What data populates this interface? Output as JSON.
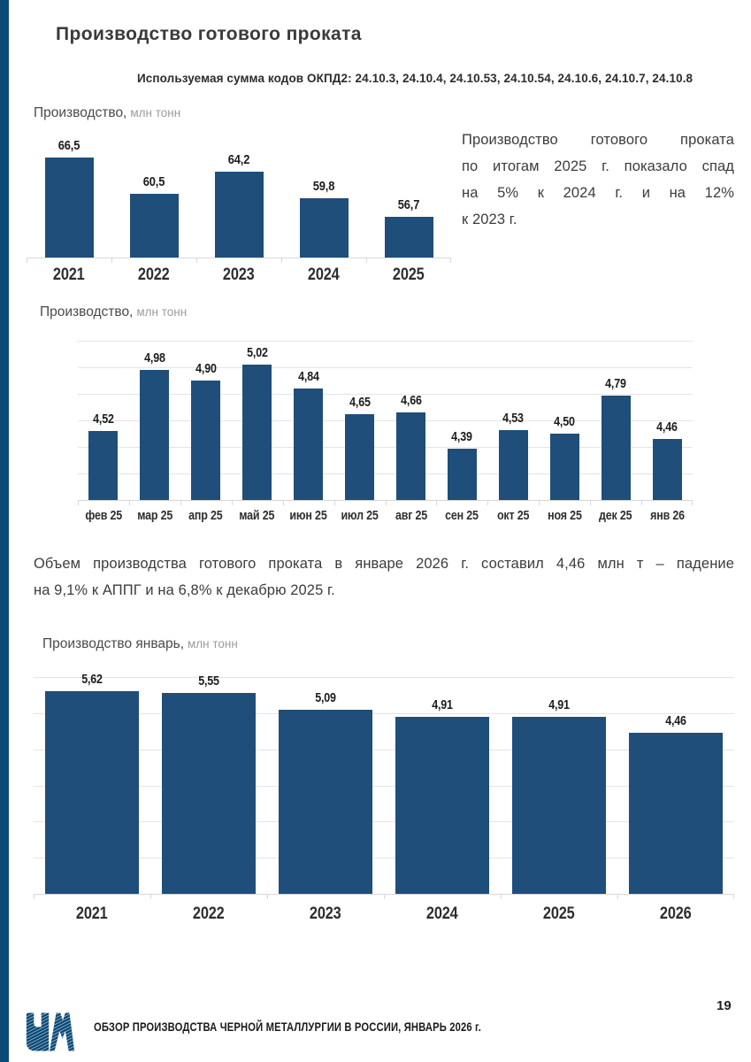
{
  "page": {
    "title": "Производство готового проката",
    "subtitle": "Используемая сумма кодов ОКПД2: 24.10.3, 24.10.4, 24.10.53, 24.10.54, 24.10.6, 24.10.7, 24.10.8",
    "page_number": "19",
    "footer_text": "ОБЗОР ПРОИЗВОДСТВА ЧЕРНОЙ МЕТАЛЛУРГИИ В РОССИИ, ЯНВАРЬ 2026 г.",
    "accent_color": "#1F4E7A",
    "stripe_color": "#0C4A77"
  },
  "annotation_right": {
    "lines": [
      "Производство готового проката",
      "по итогам 2025 г. показало спад",
      "на 5% к 2024 г. и на 12%",
      "к 2023 г."
    ]
  },
  "annotation_bottom": {
    "lines": [
      "Объем производства готового проката в январе 2026 г. составил 4,46 млн т – падение",
      "на 9,1% к АППГ и на 6,8% к декабрю 2025 г."
    ]
  },
  "chart_data": [
    {
      "id": "annual-production",
      "type": "bar",
      "label": "Производство,",
      "unit": "млн тонн",
      "categories": [
        "2021",
        "2022",
        "2023",
        "2024",
        "2025"
      ],
      "values": [
        66.5,
        60.5,
        64.2,
        59.8,
        56.7
      ],
      "value_labels": [
        "66,5",
        "60,5",
        "64,2",
        "59,8",
        "56,7"
      ],
      "ylim": [
        50,
        72
      ],
      "grid": false,
      "grid_values": []
    },
    {
      "id": "monthly-production",
      "type": "bar",
      "label": "Производство,",
      "unit": "млн тонн",
      "categories": [
        "фев 25",
        "мар 25",
        "апр 25",
        "май 25",
        "июн 25",
        "июл 25",
        "авг 25",
        "сен 25",
        "окт 25",
        "ноя 25",
        "дек 25",
        "янв 26"
      ],
      "values": [
        4.52,
        4.98,
        4.9,
        5.02,
        4.84,
        4.65,
        4.66,
        4.39,
        4.53,
        4.5,
        4.79,
        4.46
      ],
      "value_labels": [
        "4,52",
        "4,98",
        "4,90",
        "5,02",
        "4,84",
        "4,65",
        "4,66",
        "4,39",
        "4,53",
        "4,50",
        "4,79",
        "4,46"
      ],
      "ylim": [
        4.0,
        5.27
      ],
      "grid": true,
      "grid_values": [
        4.2,
        4.4,
        4.6,
        4.8,
        5.0,
        5.2
      ]
    },
    {
      "id": "january-production",
      "type": "bar",
      "label": "Производство январь,",
      "unit": "млн тонн",
      "categories": [
        "2021",
        "2022",
        "2023",
        "2024",
        "2025",
        "2026"
      ],
      "values": [
        5.62,
        5.55,
        5.09,
        4.91,
        4.91,
        4.46
      ],
      "value_labels": [
        "5,62",
        "5,55",
        "5,09",
        "4,91",
        "4,91",
        "4,46"
      ],
      "ylim": [
        0,
        6
      ],
      "grid": true,
      "grid_values": [
        1,
        2,
        3,
        4,
        5,
        6
      ]
    }
  ]
}
